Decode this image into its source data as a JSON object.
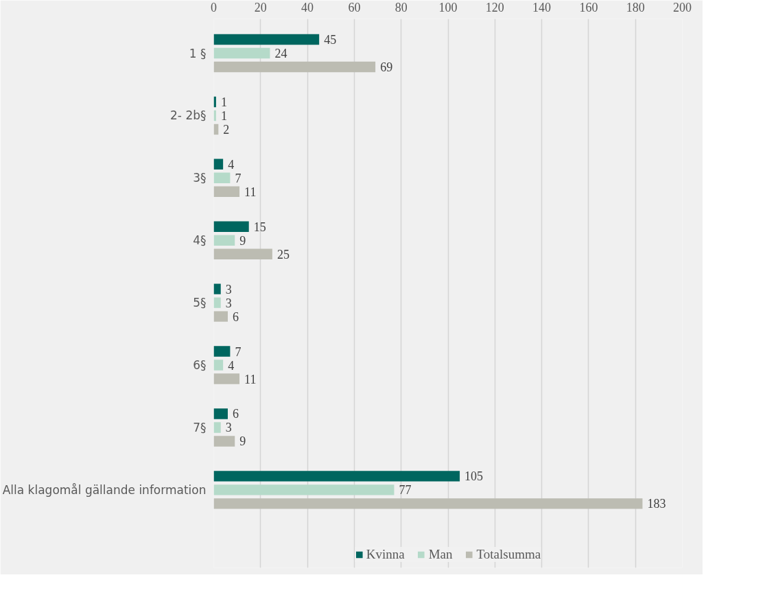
{
  "chart_data": {
    "type": "bar",
    "orientation": "horizontal",
    "categories": [
      "1 §",
      "2- 2b§",
      "3§",
      "4§",
      "5§",
      "6§",
      "7§",
      "Alla klagomål gällande information"
    ],
    "series": [
      {
        "name": "Kvinna",
        "color": "#00665f",
        "values": [
          45,
          1,
          4,
          15,
          3,
          7,
          6,
          105
        ]
      },
      {
        "name": "Man",
        "color": "#b5dac9",
        "values": [
          24,
          1,
          7,
          9,
          3,
          4,
          3,
          77
        ]
      },
      {
        "name": "Totalsumma",
        "color": "#bcbcb2",
        "values": [
          69,
          2,
          11,
          25,
          6,
          11,
          9,
          183
        ]
      }
    ],
    "xlim": [
      0,
      200
    ],
    "xticks": [
      0,
      20,
      40,
      60,
      80,
      100,
      120,
      140,
      160,
      180,
      200
    ],
    "grid": "x",
    "legend": "bottom",
    "data_labels": true
  }
}
